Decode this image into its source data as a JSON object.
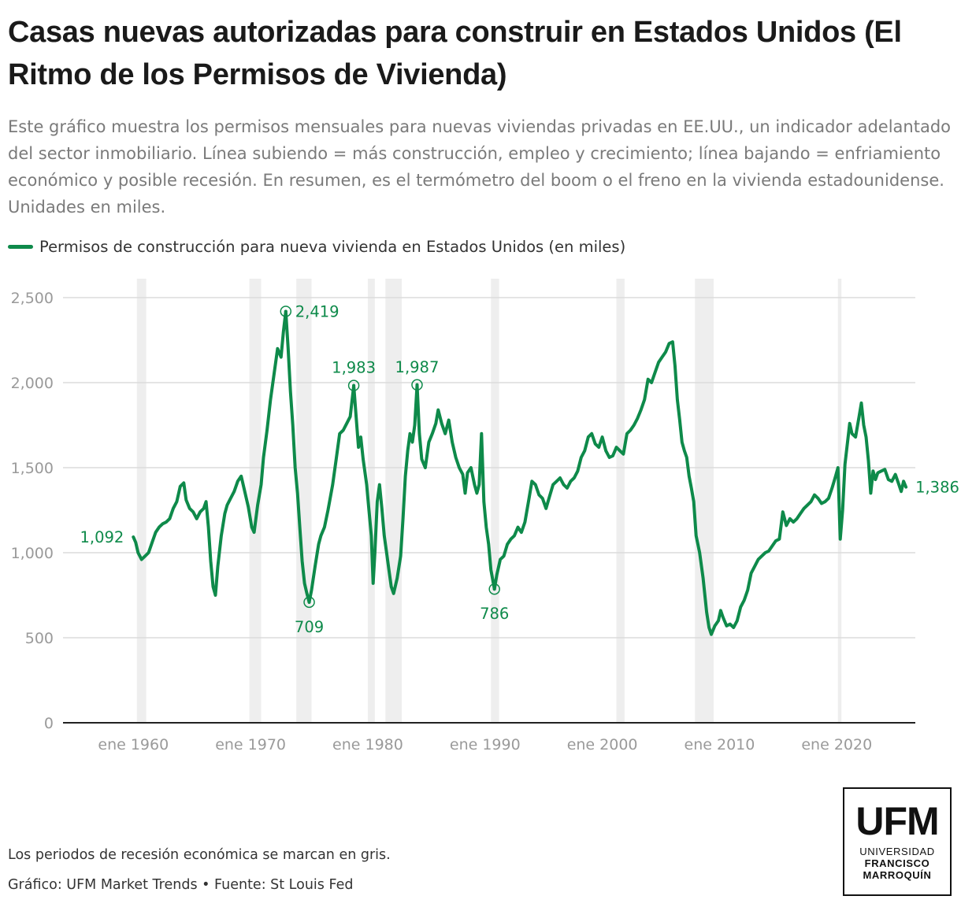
{
  "header": {
    "title": "Casas nuevas autorizadas para construir en Estados Unidos (El Ritmo de los Permisos de Vivienda)",
    "subtitle": "Este gráfico muestra los permisos mensuales para nuevas viviendas privadas en EE.UU., un indicador adelantado del sector inmobiliario. Línea subiendo = más construcción, empleo y crecimiento; línea bajando = enfriamiento económico y posible recesión. En resumen, es el termómetro del boom o el freno en la vivienda estadounidense. Unidades en miles."
  },
  "legend": {
    "label": "Permisos de construcción para nueva vivienda en Estados Unidos (en miles)"
  },
  "footer": {
    "note": "Los periodos de recesión económica se marcan en gris.",
    "credit": "Gráfico: UFM Market Trends • Fuente: St Louis Fed"
  },
  "logo": {
    "line1": "UFM",
    "line2": "UNIVERSIDAD",
    "line3": "FRANCISCO",
    "line4": "MARROQUÍN"
  },
  "chart_data": {
    "type": "line",
    "color": "#0e8a4a",
    "recession_color": "#eeeeee",
    "grid": true,
    "ylim": [
      0,
      2500
    ],
    "y_ticks": [
      0,
      500,
      1000,
      1500,
      2000,
      2500
    ],
    "y_tick_labels": [
      "0",
      "500",
      "1,000",
      "1,500",
      "2,000",
      "2,500"
    ],
    "x_ticks": [
      1960,
      1970,
      1980,
      1990,
      2000,
      2010,
      2020
    ],
    "x_tick_labels": [
      "ene 1960",
      "ene 1970",
      "ene 1980",
      "ene 1990",
      "ene 2000",
      "ene 2010",
      "ene 2020"
    ],
    "recessions": [
      [
        1960.3,
        1961.1
      ],
      [
        1969.9,
        1970.9
      ],
      [
        1973.9,
        1975.2
      ],
      [
        1980.0,
        1980.6
      ],
      [
        1981.5,
        1982.9
      ],
      [
        1990.5,
        1991.2
      ],
      [
        2001.2,
        2001.9
      ],
      [
        2007.9,
        2009.5
      ],
      [
        2020.1,
        2020.4
      ]
    ],
    "series": [
      {
        "name": "Permisos de construcción para nueva vivienda en Estados Unidos (en miles)",
        "points": [
          [
            1960.0,
            1092
          ],
          [
            1960.2,
            1060
          ],
          [
            1960.4,
            1000
          ],
          [
            1960.7,
            960
          ],
          [
            1961.0,
            980
          ],
          [
            1961.3,
            1000
          ],
          [
            1961.6,
            1060
          ],
          [
            1961.9,
            1120
          ],
          [
            1962.2,
            1150
          ],
          [
            1962.5,
            1170
          ],
          [
            1962.8,
            1180
          ],
          [
            1963.1,
            1200
          ],
          [
            1963.4,
            1260
          ],
          [
            1963.7,
            1300
          ],
          [
            1964.0,
            1390
          ],
          [
            1964.3,
            1410
          ],
          [
            1964.5,
            1310
          ],
          [
            1964.8,
            1260
          ],
          [
            1965.1,
            1240
          ],
          [
            1965.4,
            1200
          ],
          [
            1965.7,
            1240
          ],
          [
            1966.0,
            1260
          ],
          [
            1966.2,
            1300
          ],
          [
            1966.4,
            1150
          ],
          [
            1966.6,
            950
          ],
          [
            1966.8,
            800
          ],
          [
            1967.0,
            750
          ],
          [
            1967.2,
            920
          ],
          [
            1967.5,
            1100
          ],
          [
            1967.8,
            1230
          ],
          [
            1968.0,
            1280
          ],
          [
            1968.3,
            1320
          ],
          [
            1968.6,
            1360
          ],
          [
            1968.9,
            1420
          ],
          [
            1969.2,
            1450
          ],
          [
            1969.5,
            1360
          ],
          [
            1969.8,
            1270
          ],
          [
            1970.1,
            1150
          ],
          [
            1970.3,
            1120
          ],
          [
            1970.6,
            1280
          ],
          [
            1970.9,
            1400
          ],
          [
            1971.1,
            1560
          ],
          [
            1971.4,
            1720
          ],
          [
            1971.7,
            1900
          ],
          [
            1972.0,
            2050
          ],
          [
            1972.3,
            2200
          ],
          [
            1972.6,
            2150
          ],
          [
            1972.8,
            2300
          ],
          [
            1973.0,
            2419
          ],
          [
            1973.2,
            2200
          ],
          [
            1973.4,
            1950
          ],
          [
            1973.6,
            1750
          ],
          [
            1973.8,
            1500
          ],
          [
            1974.0,
            1350
          ],
          [
            1974.2,
            1150
          ],
          [
            1974.4,
            950
          ],
          [
            1974.6,
            820
          ],
          [
            1974.8,
            760
          ],
          [
            1975.0,
            709
          ],
          [
            1975.2,
            780
          ],
          [
            1975.5,
            920
          ],
          [
            1975.8,
            1050
          ],
          [
            1976.0,
            1100
          ],
          [
            1976.3,
            1150
          ],
          [
            1976.6,
            1250
          ],
          [
            1977.0,
            1400
          ],
          [
            1977.3,
            1550
          ],
          [
            1977.6,
            1700
          ],
          [
            1977.9,
            1720
          ],
          [
            1978.2,
            1760
          ],
          [
            1978.5,
            1800
          ],
          [
            1978.8,
            1983
          ],
          [
            1979.0,
            1800
          ],
          [
            1979.2,
            1620
          ],
          [
            1979.4,
            1680
          ],
          [
            1979.6,
            1550
          ],
          [
            1979.9,
            1400
          ],
          [
            1980.1,
            1250
          ],
          [
            1980.3,
            1100
          ],
          [
            1980.45,
            820
          ],
          [
            1980.6,
            1000
          ],
          [
            1980.8,
            1300
          ],
          [
            1981.0,
            1400
          ],
          [
            1981.2,
            1260
          ],
          [
            1981.4,
            1100
          ],
          [
            1981.6,
            1000
          ],
          [
            1981.8,
            900
          ],
          [
            1982.0,
            800
          ],
          [
            1982.2,
            760
          ],
          [
            1982.5,
            850
          ],
          [
            1982.8,
            980
          ],
          [
            1983.0,
            1200
          ],
          [
            1983.2,
            1450
          ],
          [
            1983.4,
            1600
          ],
          [
            1983.6,
            1700
          ],
          [
            1983.8,
            1650
          ],
          [
            1984.0,
            1750
          ],
          [
            1984.2,
            1987
          ],
          [
            1984.4,
            1700
          ],
          [
            1984.6,
            1550
          ],
          [
            1984.9,
            1500
          ],
          [
            1985.2,
            1650
          ],
          [
            1985.5,
            1700
          ],
          [
            1985.8,
            1760
          ],
          [
            1986.0,
            1840
          ],
          [
            1986.3,
            1760
          ],
          [
            1986.6,
            1700
          ],
          [
            1986.9,
            1780
          ],
          [
            1987.2,
            1650
          ],
          [
            1987.5,
            1560
          ],
          [
            1987.8,
            1500
          ],
          [
            1988.1,
            1460
          ],
          [
            1988.3,
            1350
          ],
          [
            1988.5,
            1470
          ],
          [
            1988.8,
            1500
          ],
          [
            1989.1,
            1400
          ],
          [
            1989.3,
            1350
          ],
          [
            1989.5,
            1400
          ],
          [
            1989.7,
            1700
          ],
          [
            1989.9,
            1300
          ],
          [
            1990.1,
            1150
          ],
          [
            1990.3,
            1050
          ],
          [
            1990.5,
            900
          ],
          [
            1990.8,
            786
          ],
          [
            1991.0,
            870
          ],
          [
            1991.3,
            960
          ],
          [
            1991.6,
            980
          ],
          [
            1991.9,
            1050
          ],
          [
            1992.2,
            1080
          ],
          [
            1992.5,
            1100
          ],
          [
            1992.8,
            1150
          ],
          [
            1993.1,
            1120
          ],
          [
            1993.4,
            1180
          ],
          [
            1993.7,
            1300
          ],
          [
            1994.0,
            1420
          ],
          [
            1994.3,
            1400
          ],
          [
            1994.6,
            1340
          ],
          [
            1994.9,
            1320
          ],
          [
            1995.2,
            1260
          ],
          [
            1995.5,
            1330
          ],
          [
            1995.8,
            1400
          ],
          [
            1996.1,
            1420
          ],
          [
            1996.4,
            1440
          ],
          [
            1996.7,
            1400
          ],
          [
            1997.0,
            1380
          ],
          [
            1997.3,
            1420
          ],
          [
            1997.6,
            1440
          ],
          [
            1997.9,
            1480
          ],
          [
            1998.2,
            1560
          ],
          [
            1998.5,
            1600
          ],
          [
            1998.8,
            1680
          ],
          [
            1999.1,
            1700
          ],
          [
            1999.4,
            1640
          ],
          [
            1999.7,
            1620
          ],
          [
            2000.0,
            1680
          ],
          [
            2000.3,
            1600
          ],
          [
            2000.6,
            1560
          ],
          [
            2000.9,
            1570
          ],
          [
            2001.2,
            1620
          ],
          [
            2001.5,
            1600
          ],
          [
            2001.8,
            1580
          ],
          [
            2002.1,
            1700
          ],
          [
            2002.4,
            1720
          ],
          [
            2002.7,
            1750
          ],
          [
            2003.0,
            1790
          ],
          [
            2003.3,
            1840
          ],
          [
            2003.6,
            1900
          ],
          [
            2003.9,
            2020
          ],
          [
            2004.2,
            2000
          ],
          [
            2004.5,
            2060
          ],
          [
            2004.8,
            2120
          ],
          [
            2005.1,
            2150
          ],
          [
            2005.4,
            2180
          ],
          [
            2005.7,
            2230
          ],
          [
            2006.0,
            2240
          ],
          [
            2006.2,
            2100
          ],
          [
            2006.4,
            1900
          ],
          [
            2006.6,
            1780
          ],
          [
            2006.8,
            1650
          ],
          [
            2007.0,
            1600
          ],
          [
            2007.2,
            1560
          ],
          [
            2007.4,
            1450
          ],
          [
            2007.6,
            1380
          ],
          [
            2007.8,
            1300
          ],
          [
            2008.0,
            1100
          ],
          [
            2008.3,
            1000
          ],
          [
            2008.6,
            850
          ],
          [
            2008.9,
            650
          ],
          [
            2009.1,
            560
          ],
          [
            2009.3,
            520
          ],
          [
            2009.6,
            570
          ],
          [
            2009.9,
            600
          ],
          [
            2010.1,
            660
          ],
          [
            2010.3,
            620
          ],
          [
            2010.6,
            570
          ],
          [
            2010.9,
            580
          ],
          [
            2011.2,
            560
          ],
          [
            2011.5,
            600
          ],
          [
            2011.8,
            680
          ],
          [
            2012.1,
            720
          ],
          [
            2012.4,
            780
          ],
          [
            2012.7,
            880
          ],
          [
            2013.0,
            920
          ],
          [
            2013.3,
            960
          ],
          [
            2013.6,
            980
          ],
          [
            2013.9,
            1000
          ],
          [
            2014.2,
            1010
          ],
          [
            2014.5,
            1040
          ],
          [
            2014.8,
            1070
          ],
          [
            2015.1,
            1080
          ],
          [
            2015.4,
            1240
          ],
          [
            2015.7,
            1160
          ],
          [
            2016.0,
            1200
          ],
          [
            2016.3,
            1180
          ],
          [
            2016.6,
            1200
          ],
          [
            2016.9,
            1230
          ],
          [
            2017.2,
            1260
          ],
          [
            2017.5,
            1280
          ],
          [
            2017.8,
            1300
          ],
          [
            2018.1,
            1340
          ],
          [
            2018.4,
            1320
          ],
          [
            2018.7,
            1290
          ],
          [
            2019.0,
            1300
          ],
          [
            2019.3,
            1320
          ],
          [
            2019.6,
            1380
          ],
          [
            2019.9,
            1450
          ],
          [
            2020.1,
            1500
          ],
          [
            2020.3,
            1080
          ],
          [
            2020.5,
            1250
          ],
          [
            2020.7,
            1520
          ],
          [
            2020.9,
            1640
          ],
          [
            2021.1,
            1760
          ],
          [
            2021.3,
            1700
          ],
          [
            2021.6,
            1680
          ],
          [
            2021.9,
            1800
          ],
          [
            2022.1,
            1880
          ],
          [
            2022.3,
            1750
          ],
          [
            2022.5,
            1680
          ],
          [
            2022.7,
            1540
          ],
          [
            2022.9,
            1350
          ],
          [
            2023.1,
            1480
          ],
          [
            2023.3,
            1430
          ],
          [
            2023.5,
            1470
          ],
          [
            2023.8,
            1480
          ],
          [
            2024.1,
            1490
          ],
          [
            2024.4,
            1430
          ],
          [
            2024.7,
            1420
          ],
          [
            2025.0,
            1460
          ],
          [
            2025.3,
            1400
          ],
          [
            2025.5,
            1360
          ],
          [
            2025.7,
            1420
          ],
          [
            2025.9,
            1386
          ]
        ]
      }
    ],
    "annotations": [
      {
        "x": 1960.0,
        "y": 1092,
        "label": "1,092",
        "pos": "left",
        "marker": false
      },
      {
        "x": 1973.0,
        "y": 2419,
        "label": "2,419",
        "pos": "right",
        "marker": true
      },
      {
        "x": 1975.0,
        "y": 709,
        "label": "709",
        "pos": "below",
        "marker": true
      },
      {
        "x": 1978.8,
        "y": 1983,
        "label": "1,983",
        "pos": "above",
        "marker": true
      },
      {
        "x": 1984.2,
        "y": 1987,
        "label": "1,987",
        "pos": "above",
        "marker": true
      },
      {
        "x": 1990.8,
        "y": 786,
        "label": "786",
        "pos": "below",
        "marker": true
      },
      {
        "x": 2025.9,
        "y": 1386,
        "label": "1,386",
        "pos": "right",
        "marker": false
      }
    ]
  }
}
